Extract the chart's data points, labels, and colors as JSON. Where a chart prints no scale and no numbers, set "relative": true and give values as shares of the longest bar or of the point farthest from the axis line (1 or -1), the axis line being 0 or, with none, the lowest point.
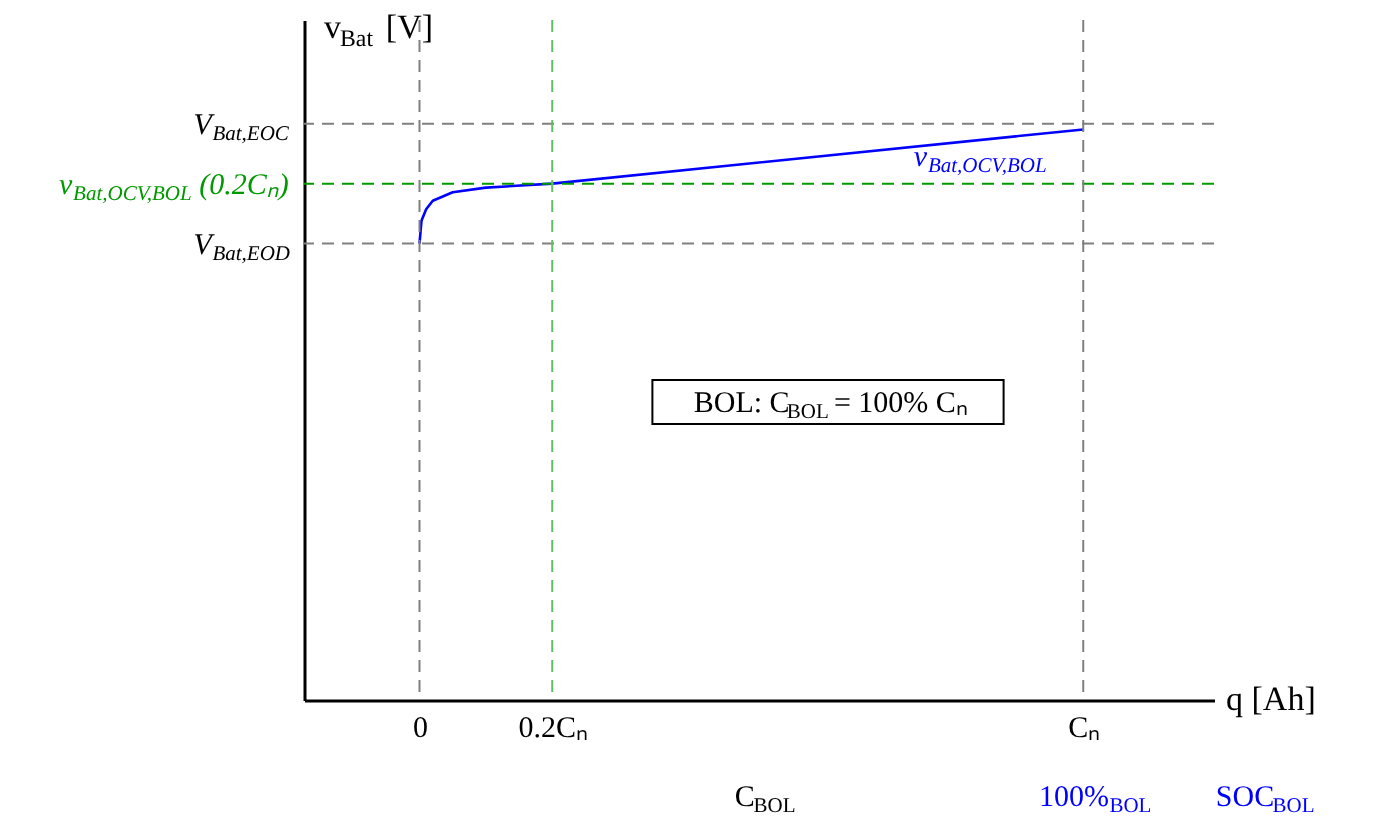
{
  "chart_data": {
    "type": "line",
    "relative": true,
    "xlabel": "q [Ah]",
    "ylabel": "v$_{Bat}$ [V]",
    "xlim": [
      -0.174,
      1.197
    ],
    "xticks": [
      {
        "value": 0,
        "label": "0"
      },
      {
        "value": 0.2,
        "label": "0.2Cₙ"
      },
      {
        "value": 1,
        "label": "Cₙ"
      }
    ],
    "series": [
      {
        "name": "v$_{Bat,OCV,BOL}$",
        "color": "#0000ff",
        "x": [
          0,
          0.003,
          0.01,
          0.02,
          0.05,
          0.1,
          0.2,
          1
        ],
        "values": [
          0.8,
          0.84,
          0.86,
          0.875,
          0.89,
          0.898,
          0.905,
          1
        ]
      }
    ],
    "ref_lines": [
      {
        "axis": "y",
        "value": 1.01,
        "label": "V$_{Bat,EOC}$",
        "color": "#808080",
        "line_style": "dashed"
      },
      {
        "axis": "y",
        "value": 0.8,
        "label": "V$_{Bat,EOD}$",
        "color": "#808080",
        "line_style": "dashed"
      },
      {
        "axis": "y",
        "value": 0.905,
        "label": "v$_{Bat,OCV,BOL}$(0.2Cₙ)",
        "color": "#009900",
        "line_style": "dashed"
      },
      {
        "axis": "x",
        "value": 0,
        "color": "#808080",
        "line_style": "dashed"
      },
      {
        "axis": "x",
        "value": 0.2,
        "color": "#66bb66",
        "line_style": "dashed"
      },
      {
        "axis": "x",
        "value": 1,
        "color": "#808080",
        "line_style": "dashed"
      }
    ],
    "annotations": [
      "BOL: C$_{BOL}$ = 100% Cₙ",
      "C$_{BOL}$",
      "100%$_{BOL}$",
      "SOC$_{BOL}$"
    ],
    "grid": false
  }
}
